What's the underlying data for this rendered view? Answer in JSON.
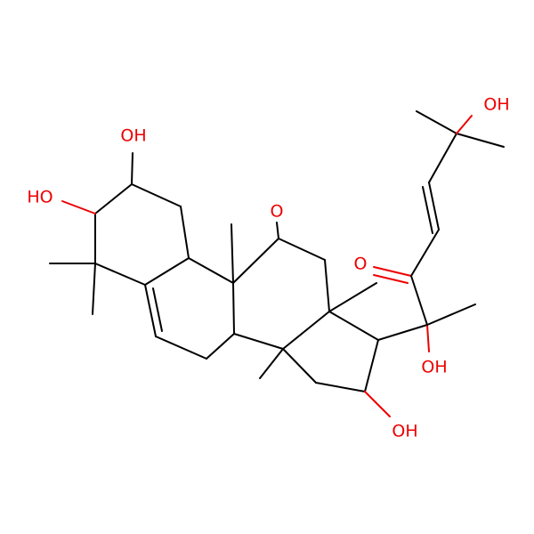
{
  "atoms": {
    "labels": [
      "OH",
      "HO",
      "O",
      "O",
      "OH",
      "OH",
      "OH"
    ]
  }
}
